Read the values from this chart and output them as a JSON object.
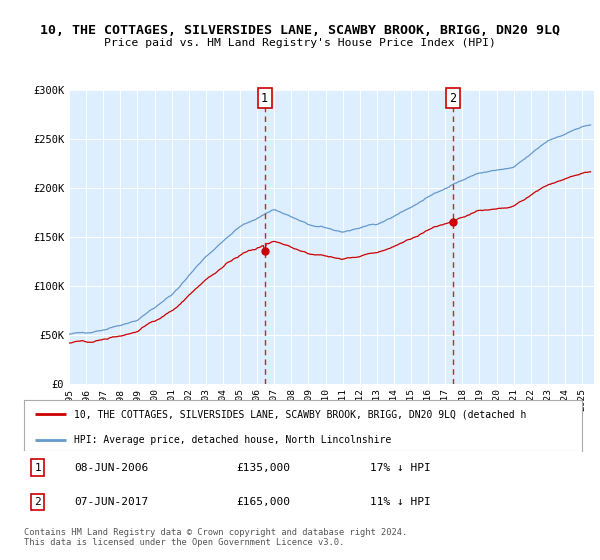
{
  "title": "10, THE COTTAGES, SILVERSIDES LANE, SCAWBY BROOK, BRIGG, DN20 9LQ",
  "subtitle": "Price paid vs. HM Land Registry's House Price Index (HPI)",
  "background_color": "#ffffff",
  "plot_bg_color": "#ddeeff",
  "ylim": [
    0,
    300000
  ],
  "yticks": [
    0,
    50000,
    100000,
    150000,
    200000,
    250000,
    300000
  ],
  "ytick_labels": [
    "£0",
    "£50K",
    "£100K",
    "£150K",
    "£200K",
    "£250K",
    "£300K"
  ],
  "xstart_year": 1995,
  "xend_year": 2025,
  "sale1_year": 2006.44,
  "sale1_price": 135000,
  "sale1_label": "1",
  "sale1_date": "08-JUN-2006",
  "sale1_hpi_diff": "17% ↓ HPI",
  "sale2_year": 2017.44,
  "sale2_price": 165000,
  "sale2_label": "2",
  "sale2_date": "07-JUN-2017",
  "sale2_hpi_diff": "11% ↓ HPI",
  "hpi_color": "#6699cc",
  "price_color": "#cc0000",
  "vline_color": "#cc0000",
  "legend_label_price": "10, THE COTTAGES, SILVERSIDES LANE, SCAWBY BROOK, BRIGG, DN20 9LQ (detached h",
  "legend_label_hpi": "HPI: Average price, detached house, North Lincolnshire",
  "footer": "Contains HM Land Registry data © Crown copyright and database right 2024.\nThis data is licensed under the Open Government Licence v3.0.",
  "hpi_key_years": [
    1995,
    1997,
    1999,
    2001,
    2003,
    2005,
    2007,
    2009,
    2011,
    2013,
    2015,
    2017,
    2019,
    2021,
    2023,
    2025,
    2026
  ],
  "hpi_key_vals": [
    50000,
    55000,
    65000,
    90000,
    130000,
    160000,
    178000,
    162000,
    155000,
    162000,
    180000,
    200000,
    215000,
    220000,
    248000,
    262000,
    265000
  ],
  "price_ratio": 0.82
}
